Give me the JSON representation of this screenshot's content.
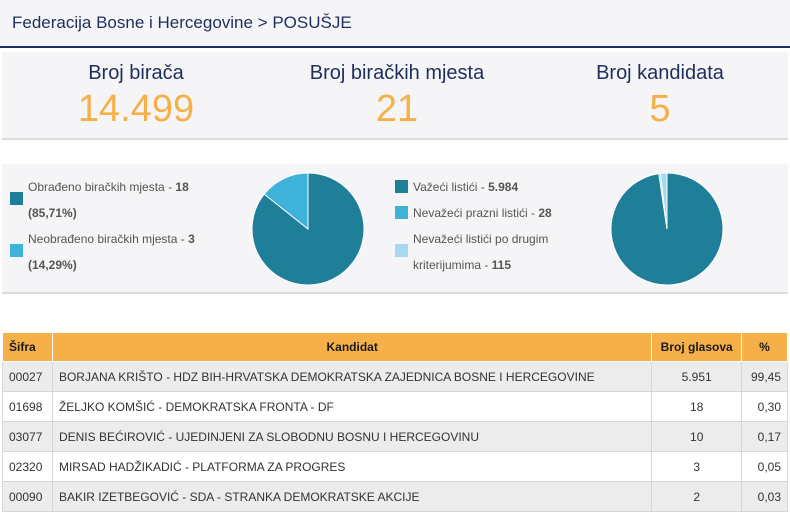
{
  "header": {
    "breadcrumb": "Federacija Bosne i Hercegovine > POSUŠJE"
  },
  "stats": [
    {
      "label": "Broj birača",
      "value": "14.499"
    },
    {
      "label": "Broj biračkih mjesta",
      "value": "21"
    },
    {
      "label": "Broj kandidata",
      "value": "5"
    }
  ],
  "polling_stations": {
    "processed": {
      "label": "Obrađeno biračkih mjesta - ",
      "count": "18",
      "pct": "(85,71%)",
      "fraction": 0.8571,
      "color": "#1f7f99"
    },
    "unprocessed": {
      "label": "Neobrađeno biračkih mjesta - ",
      "count": "3",
      "pct": "(14,29%)",
      "fraction": 0.1429,
      "color": "#3fb2d9"
    }
  },
  "ballots": {
    "valid": {
      "label": "Važeći listići - ",
      "count": "5.984",
      "value": 5984,
      "color": "#1f7f99"
    },
    "invalid_blank": {
      "label": "Nevažeći prazni listići - ",
      "count": "28",
      "value": 28,
      "color": "#3fb2d9"
    },
    "invalid_other": {
      "label1": "Nevažeći listići po drugim",
      "label2": "kriterijumima - ",
      "count": "115",
      "value": 115,
      "color": "#a6d8ee"
    }
  },
  "table": {
    "headers": [
      "Šifra",
      "Kandidat",
      "Broj glasova",
      "%"
    ],
    "rows": [
      [
        "00027",
        "BORJANA KRIŠTO - HDZ BIH-HRVATSKA DEMOKRATSKA ZAJEDNICA BOSNE I HERCEGOVINE",
        "5.951",
        "99,45"
      ],
      [
        "01698",
        "ŽELJKO KOMŠIĆ - DEMOKRATSKA FRONTA - DF",
        "18",
        "0,30"
      ],
      [
        "03077",
        "DENIS BEĆIROVIĆ - UJEDINJENI ZA SLOBODNU BOSNU I HERCEGOVINU",
        "10",
        "0,17"
      ],
      [
        "02320",
        "MIRSAD HADŽIKADIĆ - PLATFORMA ZA PROGRES",
        "3",
        "0,05"
      ],
      [
        "00090",
        "BAKIR IZETBEGOVIĆ - SDA - STRANKA DEMOKRATSKE AKCIJE",
        "2",
        "0,03"
      ]
    ]
  }
}
